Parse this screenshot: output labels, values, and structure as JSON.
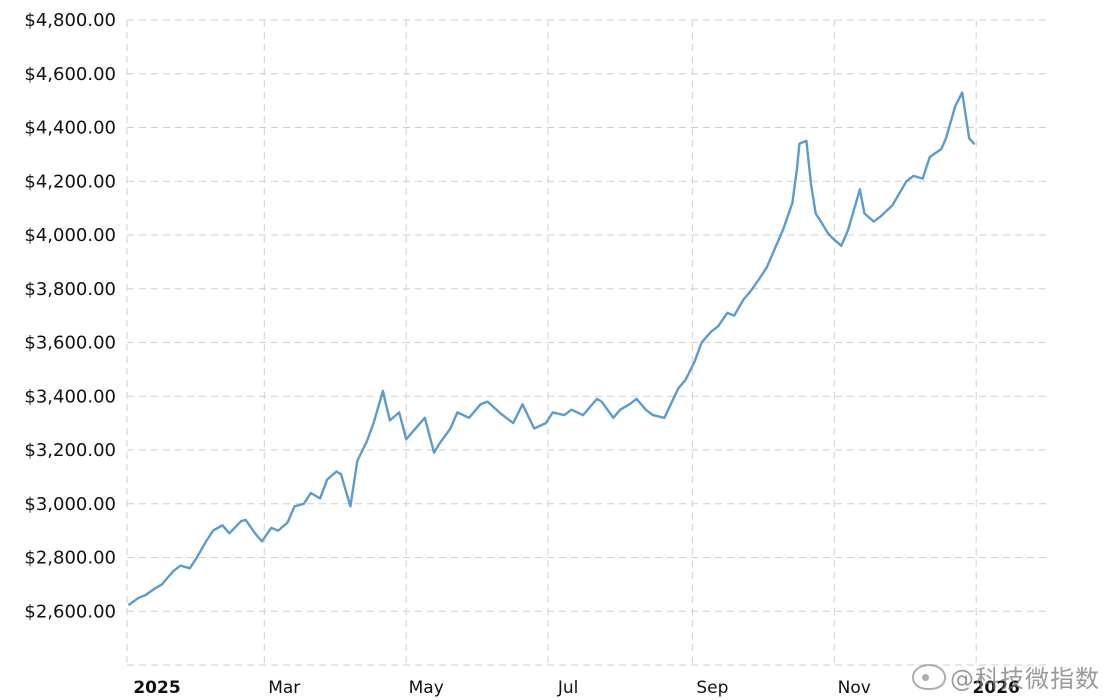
{
  "chart_data": {
    "type": "line",
    "title": "",
    "xlabel": "",
    "ylabel": "",
    "x_tick_labels": [
      "2025",
      "Mar",
      "May",
      "Jul",
      "Sep",
      "Nov",
      "2026"
    ],
    "y_tick_labels": [
      "$2,600.00",
      "$2,800.00",
      "$3,000.00",
      "$3,200.00",
      "$3,400.00",
      "$3,600.00",
      "$3,800.00",
      "$4,000.00",
      "$4,200.00",
      "$4,400.00",
      "$4,600.00",
      "$4,800.00"
    ],
    "ylim": [
      2400,
      4800
    ],
    "xlim": [
      "2025-01-01",
      "2026-01-31"
    ],
    "grid": true,
    "line_color": "#5b9bcf",
    "series": [
      {
        "x": [
          "2025-01-02",
          "2025-01-06",
          "2025-01-09",
          "2025-01-13",
          "2025-01-16",
          "2025-01-21",
          "2025-01-24",
          "2025-01-28",
          "2025-01-31",
          "2025-02-04",
          "2025-02-07",
          "2025-02-11",
          "2025-02-14",
          "2025-02-19",
          "2025-02-21",
          "2025-02-25",
          "2025-02-28",
          "2025-03-04",
          "2025-03-07",
          "2025-03-11",
          "2025-03-14",
          "2025-03-18",
          "2025-03-21",
          "2025-03-25",
          "2025-03-28",
          "2025-04-01",
          "2025-04-03",
          "2025-04-07",
          "2025-04-10",
          "2025-04-14",
          "2025-04-17",
          "2025-04-21",
          "2025-04-22",
          "2025-04-24",
          "2025-04-28",
          "2025-05-01",
          "2025-05-06",
          "2025-05-09",
          "2025-05-13",
          "2025-05-15",
          "2025-05-20",
          "2025-05-23",
          "2025-05-28",
          "2025-06-02",
          "2025-06-05",
          "2025-06-10",
          "2025-06-13",
          "2025-06-16",
          "2025-06-20",
          "2025-06-25",
          "2025-06-30",
          "2025-07-03",
          "2025-07-08",
          "2025-07-11",
          "2025-07-16",
          "2025-07-22",
          "2025-07-24",
          "2025-07-29",
          "2025-08-01",
          "2025-08-05",
          "2025-08-08",
          "2025-08-12",
          "2025-08-15",
          "2025-08-20",
          "2025-08-26",
          "2025-08-29",
          "2025-09-02",
          "2025-09-05",
          "2025-09-09",
          "2025-09-12",
          "2025-09-16",
          "2025-09-19",
          "2025-09-23",
          "2025-09-26",
          "2025-09-30",
          "2025-10-03",
          "2025-10-08",
          "2025-10-10",
          "2025-10-14",
          "2025-10-16",
          "2025-10-17",
          "2025-10-20",
          "2025-10-22",
          "2025-10-24",
          "2025-10-27",
          "2025-10-29",
          "2025-10-31",
          "2025-11-04",
          "2025-11-07",
          "2025-11-12",
          "2025-11-14",
          "2025-11-18",
          "2025-11-21",
          "2025-11-26",
          "2025-12-02",
          "2025-12-05",
          "2025-12-09",
          "2025-12-12",
          "2025-12-17",
          "2025-12-19",
          "2025-12-23",
          "2025-12-26",
          "2025-12-29",
          "2025-12-31"
        ],
        "y": [
          2625,
          2650,
          2660,
          2685,
          2700,
          2750,
          2770,
          2760,
          2800,
          2860,
          2900,
          2920,
          2890,
          2935,
          2940,
          2890,
          2860,
          2910,
          2900,
          2930,
          2990,
          3000,
          3040,
          3020,
          3090,
          3120,
          3110,
          2990,
          3160,
          3230,
          3300,
          3420,
          3380,
          3310,
          3340,
          3240,
          3290,
          3320,
          3190,
          3220,
          3280,
          3340,
          3320,
          3370,
          3380,
          3340,
          3320,
          3300,
          3370,
          3280,
          3300,
          3340,
          3330,
          3350,
          3330,
          3390,
          3380,
          3320,
          3350,
          3370,
          3390,
          3350,
          3330,
          3320,
          3430,
          3460,
          3530,
          3600,
          3640,
          3660,
          3710,
          3700,
          3760,
          3790,
          3840,
          3880,
          3980,
          4020,
          4120,
          4250,
          4340,
          4350,
          4190,
          4080,
          4040,
          4010,
          3990,
          3960,
          4020,
          4170,
          4080,
          4050,
          4070,
          4110,
          4200,
          4220,
          4210,
          4290,
          4320,
          4360,
          4480,
          4530,
          4360,
          4340
        ]
      }
    ]
  },
  "watermark": {
    "text": "@科技微指数",
    "icon": "weibo-icon"
  }
}
